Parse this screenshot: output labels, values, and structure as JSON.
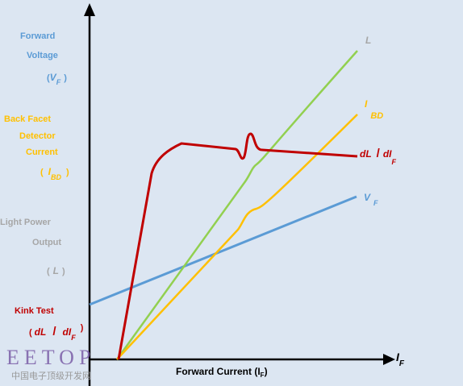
{
  "y_axis_labels": {
    "forward_voltage": {
      "lines": [
        "Forward",
        "Voltage"
      ],
      "open": "(",
      "symbol": "V",
      "subscript": "F",
      "close": ")"
    },
    "back_facet": {
      "lines": [
        "Back Facet",
        "Detector",
        "Current"
      ],
      "open": "(",
      "symbol": "I",
      "subscript": "BD",
      "close": ")"
    },
    "light_power": {
      "lines": [
        "Light Power",
        "Output"
      ],
      "open": "(",
      "symbol": "L",
      "close": ")"
    },
    "kink_test": {
      "lines": [
        "Kink Test"
      ],
      "open": "(",
      "symbol": "dL",
      "slash": "/",
      "symbol2": "dI",
      "subscript": "F",
      "close": ")"
    }
  },
  "curve_labels": {
    "light": "L",
    "detector": {
      "symbol": "I",
      "subscript": "BD"
    },
    "kink": {
      "symbol": "dL",
      "slash": "/",
      "symbol2": "dI",
      "subscript": "F"
    },
    "voltage": {
      "symbol": "V",
      "subscript": "F"
    }
  },
  "x_axis": {
    "symbol": "I",
    "subscript": "F",
    "title": "Forward Current (I",
    "title_subscript": "F",
    "title_close": ")"
  },
  "watermark": {
    "logo": "EETOP",
    "text": "中国电子顶级开发网"
  }
}
